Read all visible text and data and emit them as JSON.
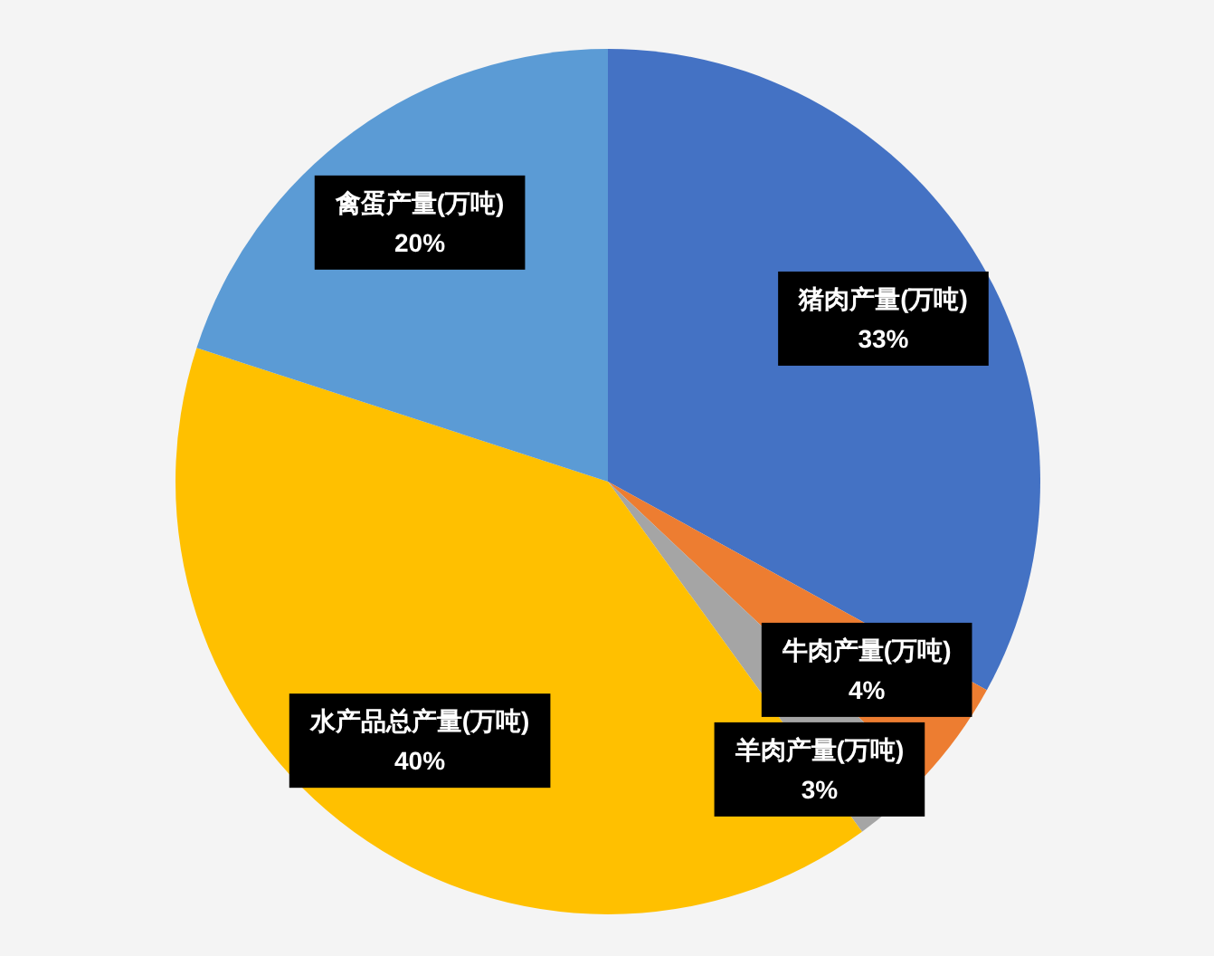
{
  "chart_data": {
    "type": "pie",
    "categories": [
      "猪肉产量(万吨)",
      "牛肉产量(万吨)",
      "羊肉产量(万吨)",
      "水产品总产量(万吨)",
      "禽蛋产量(万吨)"
    ],
    "values": [
      33,
      4,
      3,
      40,
      20
    ],
    "colors": [
      "#4472c4",
      "#ed7d31",
      "#a5a5a5",
      "#ffc000",
      "#5b9bd5"
    ],
    "value_labels": [
      "33%",
      "4%",
      "3%",
      "40%",
      "20%"
    ]
  }
}
